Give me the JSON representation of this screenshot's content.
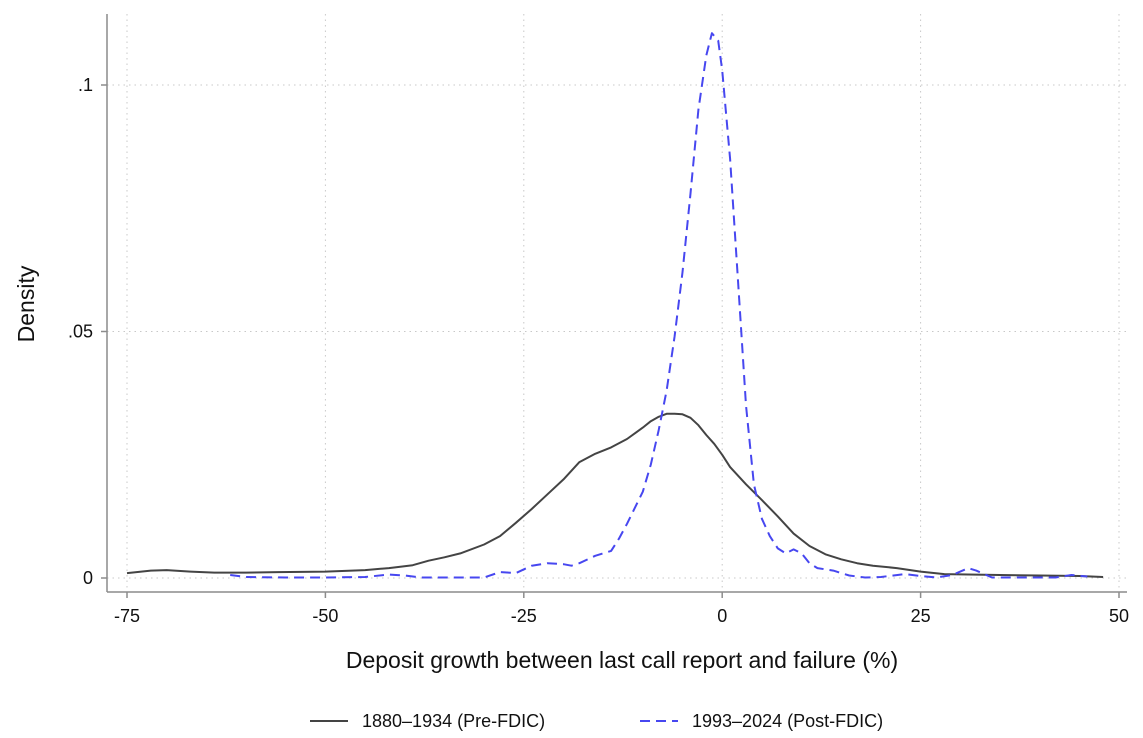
{
  "chart_data": {
    "type": "line",
    "title": "",
    "xlabel": "Deposit growth between last call report and failure (%)",
    "ylabel": "Density",
    "xlim": [
      -75,
      50
    ],
    "ylim": [
      0,
      0.112
    ],
    "x_ticks": [
      {
        "value": -75,
        "label": "-75"
      },
      {
        "value": -50,
        "label": "-50"
      },
      {
        "value": -25,
        "label": "-25"
      },
      {
        "value": 0,
        "label": "0"
      },
      {
        "value": 25,
        "label": "25"
      },
      {
        "value": 50,
        "label": "50"
      }
    ],
    "y_ticks": [
      {
        "value": 0,
        "label": "0"
      },
      {
        "value": 0.05,
        "label": ".05"
      },
      {
        "value": 0.1,
        "label": ".1"
      }
    ],
    "grid": true,
    "legend_position": "bottom",
    "series": [
      {
        "name": "1880–1934 (Pre-FDIC)",
        "color": "#444444",
        "dash": "solid",
        "points": [
          [
            -75,
            0.001
          ],
          [
            -72,
            0.0015
          ],
          [
            -70,
            0.0016
          ],
          [
            -67,
            0.0013
          ],
          [
            -64,
            0.0011
          ],
          [
            -60,
            0.0011
          ],
          [
            -56,
            0.0012
          ],
          [
            -50,
            0.0013
          ],
          [
            -45,
            0.0016
          ],
          [
            -42,
            0.002
          ],
          [
            -39,
            0.0026
          ],
          [
            -37,
            0.0035
          ],
          [
            -35,
            0.0042
          ],
          [
            -33,
            0.005
          ],
          [
            -30,
            0.0068
          ],
          [
            -28,
            0.0085
          ],
          [
            -26,
            0.0112
          ],
          [
            -24,
            0.014
          ],
          [
            -22,
            0.017
          ],
          [
            -20,
            0.02
          ],
          [
            -18,
            0.0235
          ],
          [
            -16,
            0.0252
          ],
          [
            -14,
            0.0265
          ],
          [
            -12,
            0.0282
          ],
          [
            -10,
            0.0305
          ],
          [
            -9,
            0.0318
          ],
          [
            -8,
            0.0327
          ],
          [
            -7,
            0.0333
          ],
          [
            -6,
            0.0333
          ],
          [
            -5,
            0.0332
          ],
          [
            -4,
            0.0325
          ],
          [
            -3,
            0.031
          ],
          [
            -2,
            0.029
          ],
          [
            -1,
            0.0272
          ],
          [
            0,
            0.025
          ],
          [
            1,
            0.0225
          ],
          [
            3,
            0.019
          ],
          [
            5,
            0.0158
          ],
          [
            7,
            0.0125
          ],
          [
            9,
            0.009
          ],
          [
            11,
            0.0065
          ],
          [
            13,
            0.0048
          ],
          [
            15,
            0.0038
          ],
          [
            17,
            0.003
          ],
          [
            19,
            0.0025
          ],
          [
            22,
            0.002
          ],
          [
            25,
            0.0013
          ],
          [
            28,
            0.0008
          ],
          [
            31,
            0.0007
          ],
          [
            35,
            0.0006
          ],
          [
            40,
            0.0005
          ],
          [
            45,
            0.0004
          ],
          [
            48,
            0.0002
          ]
        ]
      },
      {
        "name": "1993–2024 (Post-FDIC)",
        "color": "#4747f0",
        "dash": "dashed",
        "points": [
          [
            -62,
            0.0006
          ],
          [
            -60,
            0.0002
          ],
          [
            -55,
            0.0001
          ],
          [
            -50,
            0.0001
          ],
          [
            -45,
            0.0002
          ],
          [
            -42,
            0.0007
          ],
          [
            -40,
            0.0005
          ],
          [
            -38,
            0.0001
          ],
          [
            -34,
            0.0001
          ],
          [
            -30,
            0.0001
          ],
          [
            -28,
            0.0012
          ],
          [
            -26,
            0.001
          ],
          [
            -24,
            0.0025
          ],
          [
            -22,
            0.003
          ],
          [
            -20,
            0.0028
          ],
          [
            -19,
            0.0025
          ],
          [
            -18,
            0.003
          ],
          [
            -16,
            0.0045
          ],
          [
            -14,
            0.0055
          ],
          [
            -13,
            0.008
          ],
          [
            -12,
            0.011
          ],
          [
            -10,
            0.0175
          ],
          [
            -9,
            0.023
          ],
          [
            -8,
            0.03
          ],
          [
            -7,
            0.038
          ],
          [
            -6,
            0.049
          ],
          [
            -5,
            0.062
          ],
          [
            -4,
            0.078
          ],
          [
            -3,
            0.095
          ],
          [
            -2,
            0.106
          ],
          [
            -1.3,
            0.1105
          ],
          [
            -0.5,
            0.109
          ],
          [
            0,
            0.103
          ],
          [
            1,
            0.085
          ],
          [
            2,
            0.06
          ],
          [
            3,
            0.035
          ],
          [
            4,
            0.019
          ],
          [
            5,
            0.012
          ],
          [
            6,
            0.0085
          ],
          [
            7,
            0.006
          ],
          [
            8,
            0.005
          ],
          [
            9,
            0.0058
          ],
          [
            10,
            0.005
          ],
          [
            11,
            0.003
          ],
          [
            12,
            0.002
          ],
          [
            14,
            0.0015
          ],
          [
            16,
            0.0005
          ],
          [
            18,
            0.0001
          ],
          [
            20,
            0.0002
          ],
          [
            23,
            0.0008
          ],
          [
            25,
            0.0004
          ],
          [
            27,
            0.0001
          ],
          [
            29,
            0.0006
          ],
          [
            31,
            0.002
          ],
          [
            32,
            0.0015
          ],
          [
            34,
            0.0001
          ],
          [
            38,
            0.0001
          ],
          [
            42,
            0.0001
          ],
          [
            44,
            0.0006
          ],
          [
            46,
            0.0003
          ]
        ]
      }
    ]
  }
}
